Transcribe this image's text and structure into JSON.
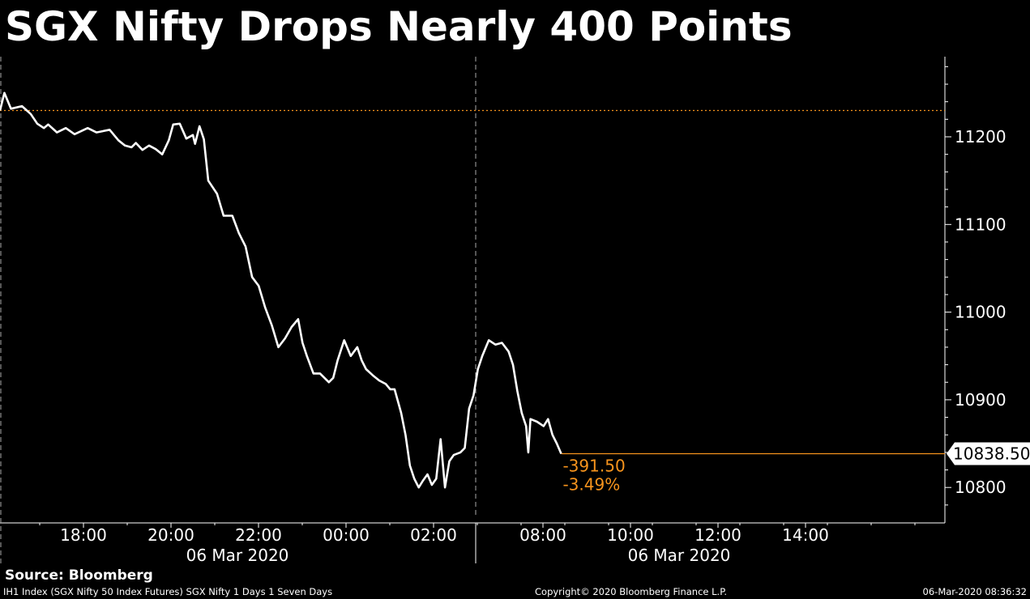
{
  "title": "SGX Nifty Drops Nearly 400 Points",
  "source": "Source: Bloomberg",
  "footer": {
    "left": "IH1 Index (SGX Nifty 50 Index Futures) SGX Nifty 1 Days 1 Seven Days",
    "center": "Copyright© 2020 Bloomberg Finance L.P.",
    "right": "06-Mar-2020 08:36:32"
  },
  "colors": {
    "background": "#000000",
    "line": "#ffffff",
    "reference": "#f7941d"
  },
  "chart_data": {
    "type": "line",
    "x_unit": "hours (clock time, 06 Mar 2020 session)",
    "x_ticks": [
      "18:00",
      "20:00",
      "22:00",
      "00:00",
      "02:00",
      "08:00",
      "10:00",
      "12:00",
      "14:00"
    ],
    "date_labels": [
      "06 Mar 2020",
      "06 Mar 2020"
    ],
    "y_ticks": [
      11200,
      11100,
      11000,
      10900,
      10800
    ],
    "ylim": [
      10760,
      11290
    ],
    "reference_level": 11230,
    "last_value": "10838.50",
    "last_value_num": 10838.5,
    "change": "-391.50",
    "change_pct": "-3.49%",
    "series": [
      {
        "points": [
          [
            0,
            11230
          ],
          [
            0.1,
            11250
          ],
          [
            0.25,
            11232
          ],
          [
            0.5,
            11235
          ],
          [
            0.7,
            11226
          ],
          [
            0.85,
            11215
          ],
          [
            1.0,
            11210
          ],
          [
            1.1,
            11214
          ],
          [
            1.3,
            11205
          ],
          [
            1.5,
            11210
          ],
          [
            1.7,
            11203
          ],
          [
            2.0,
            11210
          ],
          [
            2.2,
            11205
          ],
          [
            2.5,
            11208
          ],
          [
            2.7,
            11196
          ],
          [
            2.85,
            11190
          ],
          [
            3.0,
            11188
          ],
          [
            3.1,
            11193
          ],
          [
            3.25,
            11185
          ],
          [
            3.4,
            11190
          ],
          [
            3.55,
            11186
          ],
          [
            3.7,
            11180
          ],
          [
            3.85,
            11196
          ],
          [
            3.95,
            11214
          ],
          [
            4.1,
            11215
          ],
          [
            4.25,
            11198
          ],
          [
            4.4,
            11202
          ],
          [
            4.45,
            11192
          ],
          [
            4.55,
            11212
          ],
          [
            4.65,
            11197
          ],
          [
            4.75,
            11150
          ],
          [
            4.95,
            11135
          ],
          [
            5.1,
            11110
          ],
          [
            5.3,
            11110
          ],
          [
            5.45,
            11090
          ],
          [
            5.6,
            11075
          ],
          [
            5.75,
            11040
          ],
          [
            5.9,
            11030
          ],
          [
            6.05,
            11005
          ],
          [
            6.2,
            10985
          ],
          [
            6.35,
            10960
          ],
          [
            6.5,
            10970
          ],
          [
            6.65,
            10983
          ],
          [
            6.8,
            10992
          ],
          [
            6.9,
            10965
          ],
          [
            7.0,
            10950
          ],
          [
            7.15,
            10930
          ],
          [
            7.3,
            10930
          ],
          [
            7.5,
            10920
          ],
          [
            7.6,
            10925
          ],
          [
            7.7,
            10945
          ],
          [
            7.85,
            10968
          ],
          [
            8.0,
            10950
          ],
          [
            8.15,
            10960
          ],
          [
            8.25,
            10945
          ],
          [
            8.35,
            10935
          ],
          [
            8.5,
            10928
          ],
          [
            8.65,
            10922
          ],
          [
            8.8,
            10918
          ],
          [
            8.9,
            10912
          ],
          [
            9.0,
            10912
          ],
          [
            9.15,
            10885
          ],
          [
            9.25,
            10860
          ],
          [
            9.35,
            10825
          ],
          [
            9.45,
            10810
          ],
          [
            9.55,
            10800
          ],
          [
            9.65,
            10808
          ],
          [
            9.75,
            10815
          ],
          [
            9.85,
            10803
          ],
          [
            9.95,
            10810
          ],
          [
            10.05,
            10855
          ],
          [
            10.15,
            10800
          ],
          [
            10.25,
            10830
          ],
          [
            10.35,
            10837
          ],
          [
            10.5,
            10840
          ],
          [
            10.6,
            10845
          ],
          [
            10.7,
            10890
          ],
          [
            10.8,
            10905
          ],
          [
            10.9,
            10935
          ],
          [
            11.0,
            10950
          ],
          [
            11.15,
            10968
          ],
          [
            11.3,
            10963
          ],
          [
            11.45,
            10965
          ],
          [
            11.6,
            10955
          ],
          [
            11.7,
            10940
          ],
          [
            11.8,
            10910
          ],
          [
            11.9,
            10885
          ],
          [
            12.0,
            10870
          ],
          [
            12.05,
            10840
          ],
          [
            12.1,
            10878
          ],
          [
            12.25,
            10875
          ],
          [
            12.4,
            10870
          ],
          [
            12.5,
            10878
          ],
          [
            12.6,
            10860
          ],
          [
            12.7,
            10850
          ],
          [
            12.8,
            10838.5
          ]
        ]
      }
    ]
  }
}
